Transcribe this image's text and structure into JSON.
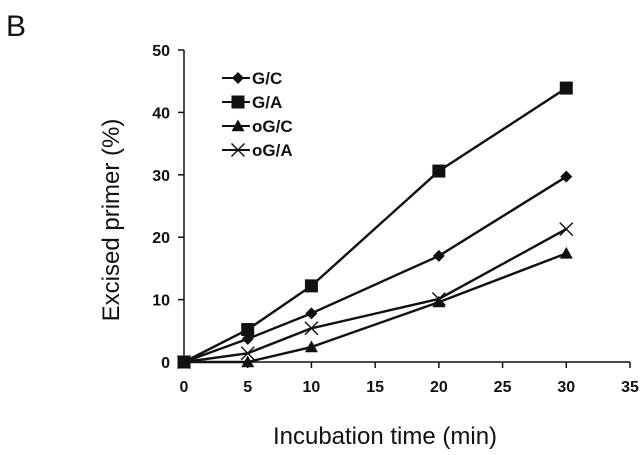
{
  "panel_label": "B",
  "chart_data": {
    "type": "line",
    "title": "",
    "xlabel": "Incubation time (min)",
    "ylabel": "Excised primer (%)",
    "xlim": [
      0,
      35
    ],
    "ylim": [
      0,
      50
    ],
    "xticks": [
      0,
      5,
      10,
      15,
      20,
      25,
      30,
      35
    ],
    "yticks": [
      0,
      10,
      20,
      30,
      40,
      50
    ],
    "grid": false,
    "legend_position": "top-left",
    "x": [
      0,
      5,
      10,
      20,
      30
    ],
    "series": [
      {
        "name": "G/C",
        "marker": "diamond",
        "values": [
          0,
          3.7,
          7.8,
          17.0,
          29.7
        ]
      },
      {
        "name": "G/A",
        "marker": "square",
        "values": [
          0,
          5.2,
          12.2,
          30.6,
          43.9
        ]
      },
      {
        "name": "oG/C",
        "marker": "triangle",
        "values": [
          0,
          0,
          2.4,
          9.6,
          17.4
        ]
      },
      {
        "name": "oG/A",
        "marker": "x",
        "values": [
          0,
          1.4,
          5.4,
          10.1,
          21.3
        ]
      }
    ]
  },
  "colors": {
    "line": "#111111",
    "background": "#ffffff"
  }
}
